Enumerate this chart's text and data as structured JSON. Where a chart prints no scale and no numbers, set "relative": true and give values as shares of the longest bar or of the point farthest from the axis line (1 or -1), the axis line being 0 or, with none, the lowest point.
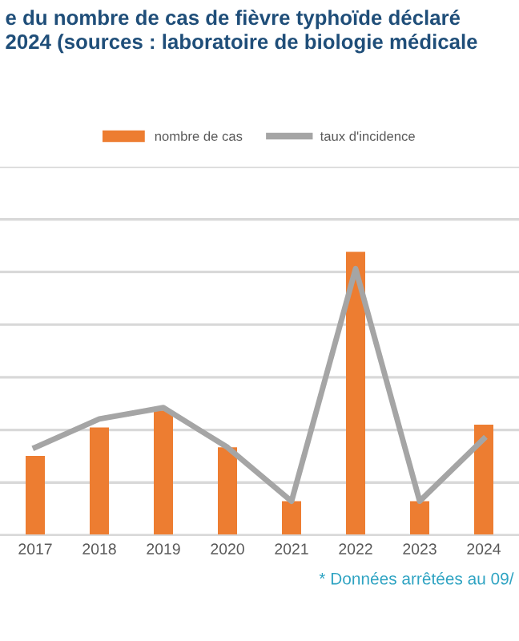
{
  "chart_data": {
    "type": "bar",
    "relative": true,
    "title": "e du nombre de cas de fièvre typhoïde déclaré\n2024 (sources : laboratoire de biologie médicale",
    "categories": [
      "2017",
      "2018",
      "2019",
      "2020",
      "2021",
      "2022",
      "2023",
      "2024"
    ],
    "series": [
      {
        "name": "nombre de cas",
        "color": "#ed7d31",
        "values": [
          0.28,
          0.38,
          0.44,
          0.31,
          0.12,
          1,
          0.12,
          0.39
        ]
      },
      {
        "name": "taux d'incidence",
        "type": "line",
        "color": "#a5a5a5",
        "marker": "none",
        "values": [
          0.31,
          0.41,
          0.45,
          0.31,
          0.12,
          0.94,
          0.12,
          0.34
        ]
      }
    ],
    "annotations": [
      "* Données arrêtées au 09/"
    ],
    "grid": "y",
    "legend": "top"
  }
}
